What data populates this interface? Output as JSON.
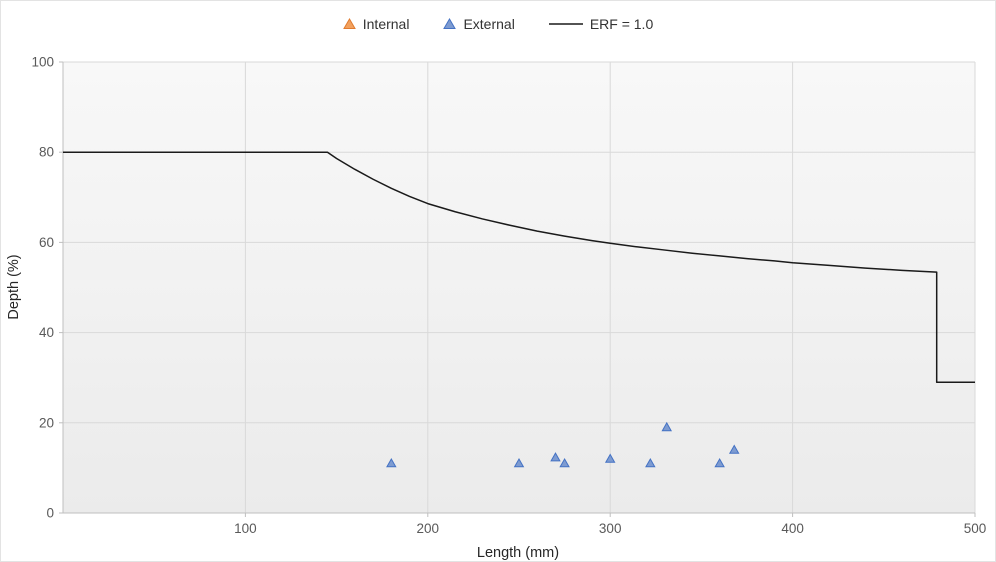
{
  "chart_data": {
    "type": "scatter",
    "title": "",
    "xlabel": "Length (mm)",
    "ylabel": "Depth (%)",
    "xlim": [
      0,
      500
    ],
    "ylim": [
      0,
      100
    ],
    "x_ticks": [
      100,
      200,
      300,
      400,
      500
    ],
    "y_ticks": [
      0,
      20,
      40,
      60,
      80,
      100
    ],
    "grid": true,
    "legend_position": "top",
    "colors": {
      "gridline": "#D9D9D9",
      "axis": "#BFBFBF",
      "plot_bg_top": "#F8F8F8",
      "plot_bg_bottom": "#EBEBEB"
    },
    "series": [
      {
        "name": "Internal",
        "kind": "scatter",
        "marker": "triangle",
        "marker_fill": "#F2A15E",
        "marker_stroke": "#E07B2F",
        "points": []
      },
      {
        "name": "External",
        "kind": "scatter",
        "marker": "triangle",
        "marker_fill": "#7D9BD1",
        "marker_stroke": "#4472C4",
        "points": [
          [
            180,
            11
          ],
          [
            250,
            11
          ],
          [
            270,
            12.3
          ],
          [
            275,
            11
          ],
          [
            300,
            12
          ],
          [
            322,
            11
          ],
          [
            331,
            19
          ],
          [
            360,
            11
          ],
          [
            368,
            14
          ]
        ]
      },
      {
        "name": "ERF = 1.0",
        "kind": "line",
        "color": "#1A1A1A",
        "points": [
          [
            0,
            80
          ],
          [
            145,
            80
          ],
          [
            150,
            78.6
          ],
          [
            160,
            76.2
          ],
          [
            170,
            74.0
          ],
          [
            180,
            72.0
          ],
          [
            190,
            70.2
          ],
          [
            200,
            68.6
          ],
          [
            215,
            66.8
          ],
          [
            230,
            65.2
          ],
          [
            245,
            63.8
          ],
          [
            260,
            62.5
          ],
          [
            275,
            61.4
          ],
          [
            290,
            60.4
          ],
          [
            300,
            59.8
          ],
          [
            315,
            59.0
          ],
          [
            330,
            58.3
          ],
          [
            345,
            57.6
          ],
          [
            360,
            57.0
          ],
          [
            375,
            56.4
          ],
          [
            390,
            55.9
          ],
          [
            400,
            55.5
          ],
          [
            420,
            54.9
          ],
          [
            440,
            54.3
          ],
          [
            460,
            53.8
          ],
          [
            479,
            53.4
          ],
          [
            479,
            29
          ],
          [
            500,
            29
          ]
        ]
      }
    ]
  }
}
